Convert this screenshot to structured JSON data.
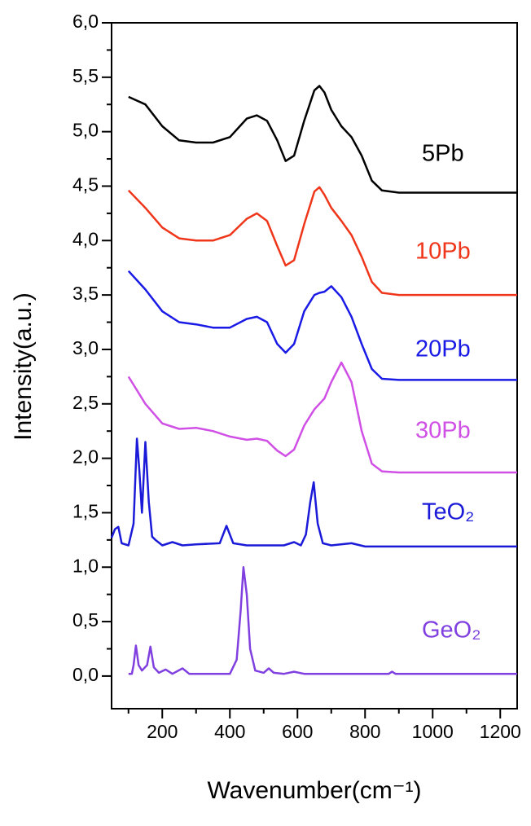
{
  "chart_data": {
    "type": "line",
    "xlabel": "Wavenumber(cm⁻¹)",
    "ylabel": "Intensity(a.u.)",
    "xlim": [
      50,
      1250
    ],
    "ylim": [
      -0.3,
      6.0
    ],
    "xticks": [
      200,
      400,
      600,
      800,
      1000,
      1200
    ],
    "yticks": [
      {
        "value": 0,
        "label": "0,0"
      },
      {
        "value": 0.5,
        "label": "0,5"
      },
      {
        "value": 1.0,
        "label": "1,0"
      },
      {
        "value": 1.5,
        "label": "1,5"
      },
      {
        "value": 2.0,
        "label": "2,0"
      },
      {
        "value": 2.5,
        "label": "2,5"
      },
      {
        "value": 3.0,
        "label": "3,0"
      },
      {
        "value": 3.5,
        "label": "3,5"
      },
      {
        "value": 4.0,
        "label": "4,0"
      },
      {
        "value": 4.5,
        "label": "4,5"
      },
      {
        "value": 5.0,
        "label": "5,0"
      },
      {
        "value": 5.5,
        "label": "5,5"
      },
      {
        "value": 6.0,
        "label": "6,0"
      }
    ],
    "series": [
      {
        "name": "5Pb",
        "color": "#000000",
        "x": [
          100,
          150,
          200,
          250,
          300,
          350,
          400,
          450,
          480,
          510,
          540,
          565,
          590,
          620,
          650,
          665,
          680,
          700,
          730,
          760,
          790,
          820,
          850,
          900,
          1000,
          1250
        ],
        "values": [
          5.32,
          5.25,
          5.05,
          4.92,
          4.9,
          4.9,
          4.95,
          5.12,
          5.15,
          5.1,
          4.92,
          4.73,
          4.78,
          5.1,
          5.38,
          5.42,
          5.36,
          5.2,
          5.05,
          4.95,
          4.78,
          4.55,
          4.46,
          4.44,
          4.44,
          4.44
        ]
      },
      {
        "name": "10Pb",
        "color": "#f0361a",
        "x": [
          100,
          150,
          200,
          250,
          300,
          350,
          400,
          450,
          480,
          510,
          540,
          565,
          590,
          620,
          650,
          665,
          680,
          700,
          730,
          760,
          790,
          820,
          850,
          900,
          1000,
          1250
        ],
        "values": [
          4.46,
          4.3,
          4.12,
          4.02,
          4.0,
          4.0,
          4.05,
          4.2,
          4.25,
          4.18,
          3.95,
          3.77,
          3.82,
          4.15,
          4.45,
          4.49,
          4.42,
          4.3,
          4.18,
          4.05,
          3.85,
          3.62,
          3.52,
          3.5,
          3.5,
          3.5
        ]
      },
      {
        "name": "20Pb",
        "color": "#1a1ae6",
        "x": [
          100,
          150,
          200,
          250,
          300,
          350,
          400,
          450,
          480,
          510,
          540,
          565,
          590,
          620,
          650,
          665,
          680,
          700,
          730,
          760,
          790,
          820,
          850,
          900,
          1000,
          1250
        ],
        "values": [
          3.72,
          3.55,
          3.35,
          3.25,
          3.23,
          3.2,
          3.2,
          3.28,
          3.3,
          3.25,
          3.05,
          2.97,
          3.05,
          3.35,
          3.5,
          3.52,
          3.53,
          3.58,
          3.48,
          3.3,
          3.05,
          2.82,
          2.73,
          2.72,
          2.72,
          2.72
        ]
      },
      {
        "name": "30Pb",
        "color": "#d050e6",
        "x": [
          100,
          150,
          200,
          250,
          300,
          350,
          400,
          450,
          480,
          510,
          540,
          565,
          590,
          620,
          650,
          665,
          680,
          700,
          730,
          760,
          790,
          820,
          850,
          900,
          1000,
          1250
        ],
        "values": [
          2.75,
          2.5,
          2.32,
          2.27,
          2.28,
          2.25,
          2.2,
          2.17,
          2.18,
          2.16,
          2.07,
          2.02,
          2.08,
          2.3,
          2.45,
          2.5,
          2.55,
          2.7,
          2.88,
          2.7,
          2.25,
          1.95,
          1.88,
          1.87,
          1.87,
          1.87
        ]
      },
      {
        "name": "TeO₂",
        "color": "#1a1ad8",
        "x": [
          50,
          60,
          70,
          80,
          100,
          115,
          125,
          132,
          140,
          150,
          160,
          170,
          180,
          200,
          230,
          260,
          300,
          370,
          390,
          410,
          450,
          560,
          590,
          610,
          625,
          638,
          648,
          660,
          675,
          700,
          760,
          800,
          1250
        ],
        "values": [
          1.27,
          1.35,
          1.37,
          1.22,
          1.2,
          1.4,
          2.18,
          1.9,
          1.5,
          2.15,
          1.6,
          1.28,
          1.25,
          1.2,
          1.23,
          1.2,
          1.21,
          1.22,
          1.38,
          1.22,
          1.2,
          1.2,
          1.23,
          1.2,
          1.3,
          1.6,
          1.78,
          1.4,
          1.22,
          1.2,
          1.22,
          1.19,
          1.19
        ]
      },
      {
        "name": "GeO₂",
        "color": "#8040e0",
        "x": [
          100,
          110,
          115,
          122,
          130,
          140,
          155,
          165,
          175,
          190,
          210,
          230,
          260,
          280,
          300,
          400,
          420,
          432,
          440,
          450,
          460,
          475,
          500,
          515,
          530,
          560,
          590,
          620,
          700,
          870,
          880,
          890,
          1000,
          1250
        ],
        "values": [
          0.02,
          0.02,
          0.1,
          0.28,
          0.1,
          0.05,
          0.1,
          0.27,
          0.08,
          0.03,
          0.06,
          0.02,
          0.07,
          0.02,
          0.02,
          0.02,
          0.15,
          0.6,
          1.0,
          0.75,
          0.25,
          0.05,
          0.03,
          0.07,
          0.03,
          0.02,
          0.04,
          0.02,
          0.02,
          0.02,
          0.04,
          0.02,
          0.02,
          0.02
        ]
      }
    ]
  }
}
